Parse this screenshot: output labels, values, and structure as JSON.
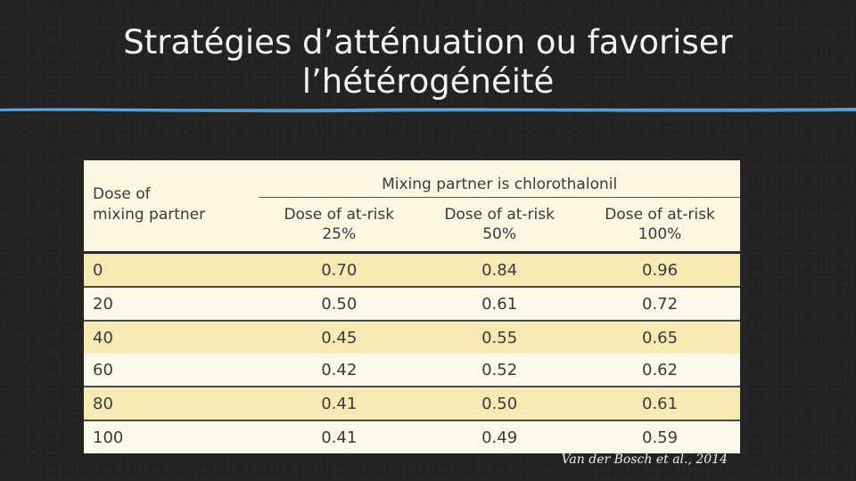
{
  "slide": {
    "title_line1": "Stratégies d’atténuation ou favoriser",
    "title_line2": "l’hétérogénéité",
    "citation": "Van der Bosch et al., 2014",
    "colors": {
      "background": "#232323",
      "accent_line": "#5a9fd4",
      "table_bg": "#faf6e0",
      "row_stripe": "#f7e9b4"
    }
  },
  "table": {
    "group_header": "Mixing partner is chlorothalonil",
    "row_header_line1": "Dose of",
    "row_header_line2": "mixing partner",
    "columns": [
      {
        "line1": "Dose of at-risk",
        "line2": "25%"
      },
      {
        "line1": "Dose of at-risk",
        "line2": "50%"
      },
      {
        "line1": "Dose of at-risk",
        "line2": "100%"
      }
    ],
    "rows": [
      {
        "dose": "0",
        "values": [
          "0.70",
          "0.84",
          "0.96"
        ]
      },
      {
        "dose": "20",
        "values": [
          "0.50",
          "0.61",
          "0.72"
        ]
      },
      {
        "dose": "40",
        "values": [
          "0.45",
          "0.55",
          "0.65"
        ]
      },
      {
        "dose": "60",
        "values": [
          "0.42",
          "0.52",
          "0.62"
        ]
      },
      {
        "dose": "80",
        "values": [
          "0.41",
          "0.50",
          "0.61"
        ]
      },
      {
        "dose": "100",
        "values": [
          "0.41",
          "0.49",
          "0.59"
        ]
      }
    ]
  }
}
